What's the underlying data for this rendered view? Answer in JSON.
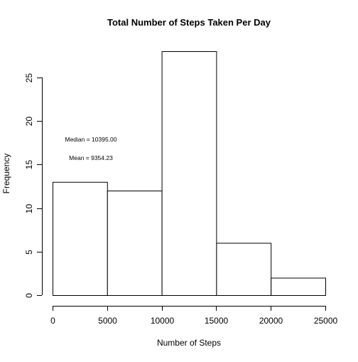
{
  "chart_data": {
    "type": "bar",
    "title": "Total Number of Steps Taken Per Day",
    "xlabel": "Number of Steps",
    "ylabel": "Frequency",
    "bins": [
      {
        "start": 0,
        "end": 5000,
        "count": 13
      },
      {
        "start": 5000,
        "end": 10000,
        "count": 12
      },
      {
        "start": 10000,
        "end": 15000,
        "count": 28
      },
      {
        "start": 15000,
        "end": 20000,
        "count": 6
      },
      {
        "start": 20000,
        "end": 25000,
        "count": 2
      }
    ],
    "xlim": [
      0,
      25000
    ],
    "ylim": [
      0,
      28
    ],
    "x_ticks": [
      "0",
      "5000",
      "10000",
      "15000",
      "20000",
      "25000"
    ],
    "y_ticks": [
      "0",
      "5",
      "10",
      "15",
      "20",
      "25"
    ],
    "annotations": [
      "Median = 10395.00",
      "Mean = 9354.23"
    ],
    "grid": false,
    "legend": "none"
  }
}
